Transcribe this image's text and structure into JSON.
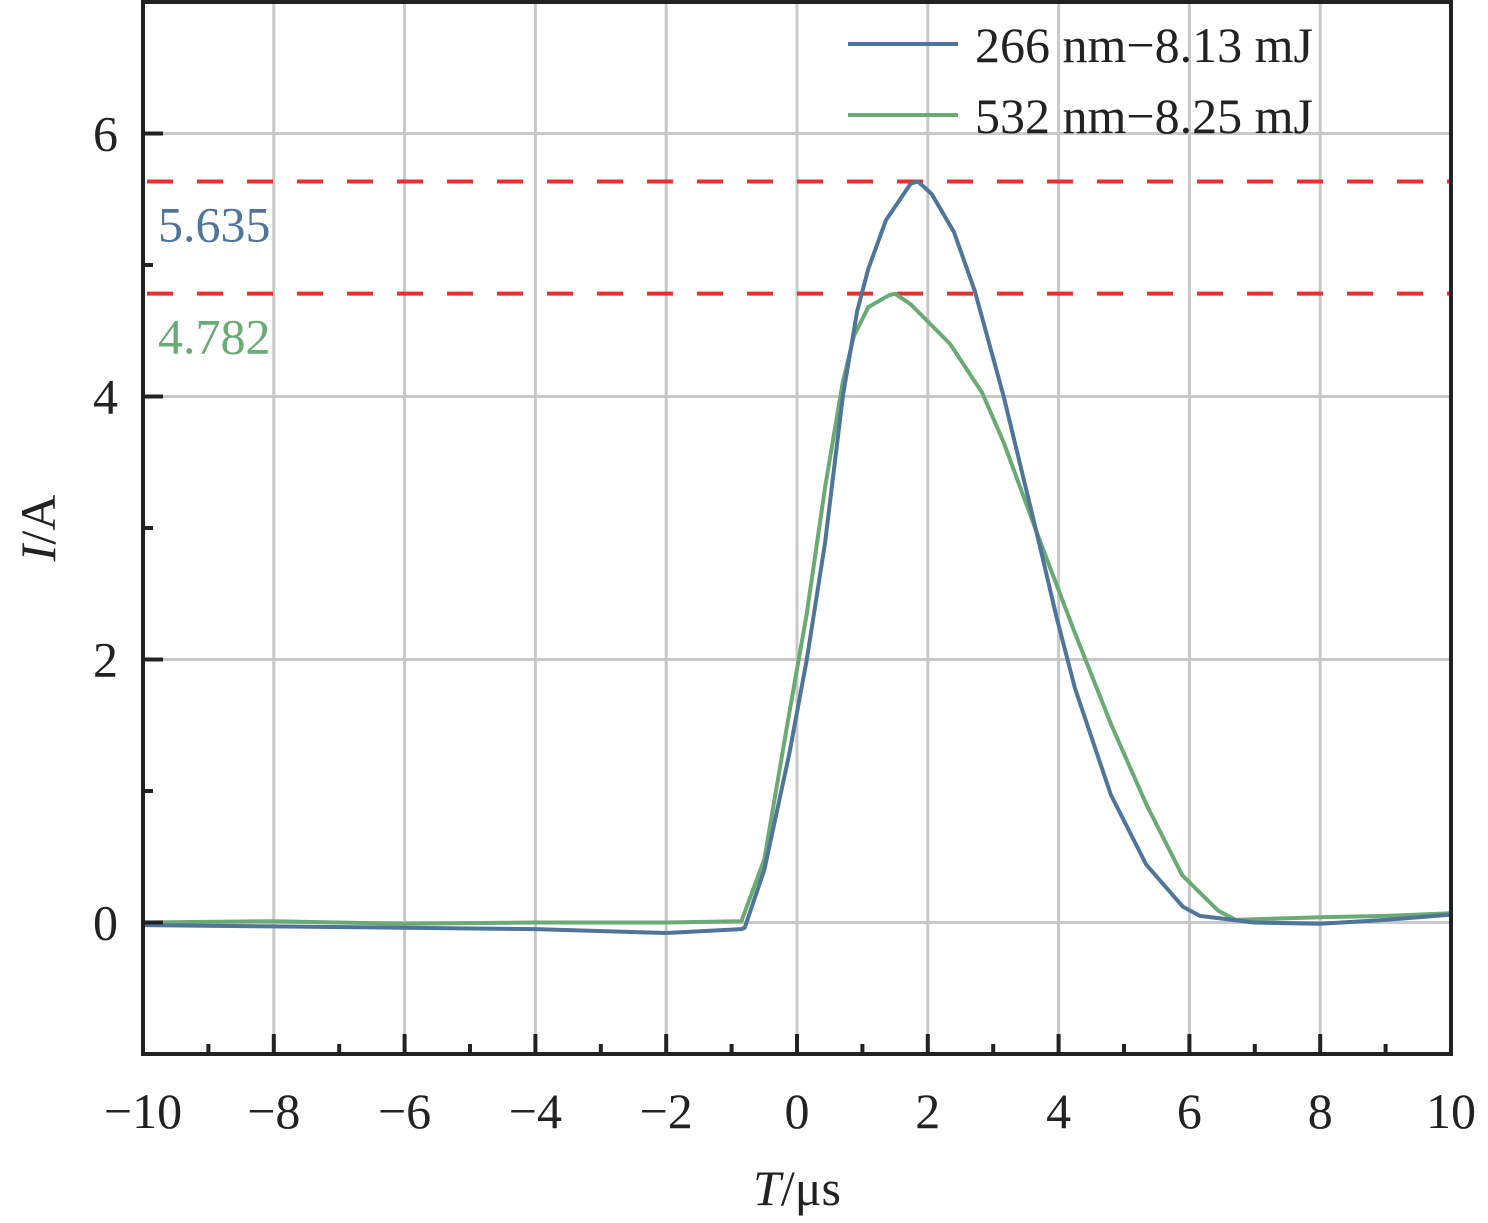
{
  "chart_data": {
    "type": "line",
    "xlabel": {
      "italic": "T",
      "rest": "/μs"
    },
    "ylabel": {
      "italic": "I",
      "rest": "/A"
    },
    "xlim": [
      -10,
      10
    ],
    "ylim": [
      -1,
      7
    ],
    "xticks": [
      "−10",
      "−8",
      "−6",
      "−4",
      "−2",
      "0",
      "2",
      "4",
      "6",
      "8",
      "10"
    ],
    "xtick_values": [
      -10,
      -8,
      -6,
      -4,
      -2,
      0,
      2,
      4,
      6,
      8,
      10
    ],
    "yticks": [
      "0",
      "2",
      "4",
      "6"
    ],
    "ytick_values": [
      0,
      2,
      4,
      6
    ],
    "grid": true,
    "legend_position": "top-right",
    "series": [
      {
        "name": "266 nm−8.13 mJ",
        "color": "#4f7598",
        "points": [
          [
            -10,
            -0.02
          ],
          [
            -8,
            -0.03
          ],
          [
            -6,
            -0.04
          ],
          [
            -4,
            -0.05
          ],
          [
            -2,
            -0.08
          ],
          [
            -0.85,
            -0.05
          ],
          [
            -0.8,
            -0.04
          ],
          [
            -0.5,
            0.4
          ],
          [
            -0.12,
            1.28
          ],
          [
            0.15,
            2.0
          ],
          [
            0.43,
            2.89
          ],
          [
            0.7,
            4.0
          ],
          [
            0.92,
            4.65
          ],
          [
            1.09,
            4.97
          ],
          [
            1.36,
            5.34
          ],
          [
            1.74,
            5.62
          ],
          [
            1.85,
            5.635
          ],
          [
            2.06,
            5.54
          ],
          [
            2.4,
            5.25
          ],
          [
            2.72,
            4.8
          ],
          [
            3.16,
            4.0
          ],
          [
            3.7,
            2.89
          ],
          [
            3.97,
            2.32
          ],
          [
            4.25,
            1.78
          ],
          [
            4.8,
            0.97
          ],
          [
            5.34,
            0.44
          ],
          [
            5.9,
            0.12
          ],
          [
            6.16,
            0.05
          ],
          [
            6.99,
            0.0
          ],
          [
            8,
            -0.01
          ],
          [
            9,
            0.02
          ],
          [
            10,
            0.06
          ]
        ]
      },
      {
        "name": "532 nm−8.25 mJ",
        "color": "#6aaa74",
        "points": [
          [
            -10,
            0.0
          ],
          [
            -8,
            0.01
          ],
          [
            -6,
            -0.01
          ],
          [
            -4,
            0.0
          ],
          [
            -2,
            0.0
          ],
          [
            -0.85,
            0.01
          ],
          [
            -0.5,
            0.48
          ],
          [
            -0.12,
            1.59
          ],
          [
            0.15,
            2.35
          ],
          [
            0.43,
            3.31
          ],
          [
            0.7,
            4.11
          ],
          [
            0.87,
            4.46
          ],
          [
            1.09,
            4.68
          ],
          [
            1.41,
            4.77
          ],
          [
            1.5,
            4.782
          ],
          [
            1.74,
            4.7
          ],
          [
            2.34,
            4.4
          ],
          [
            2.83,
            4.03
          ],
          [
            3.16,
            3.65
          ],
          [
            3.7,
            2.92
          ],
          [
            4.25,
            2.2
          ],
          [
            4.8,
            1.51
          ],
          [
            5.34,
            0.9
          ],
          [
            5.89,
            0.36
          ],
          [
            6.44,
            0.09
          ],
          [
            6.71,
            0.02
          ],
          [
            8,
            0.04
          ],
          [
            9,
            0.05
          ],
          [
            10,
            0.07
          ]
        ]
      }
    ],
    "reference_lines": [
      {
        "y": 5.635,
        "label": "5.635",
        "label_color": "#4f7598",
        "line_color": "#e83030"
      },
      {
        "y": 4.782,
        "label": "4.782",
        "label_color": "#6aaa74",
        "line_color": "#e83030"
      }
    ]
  }
}
